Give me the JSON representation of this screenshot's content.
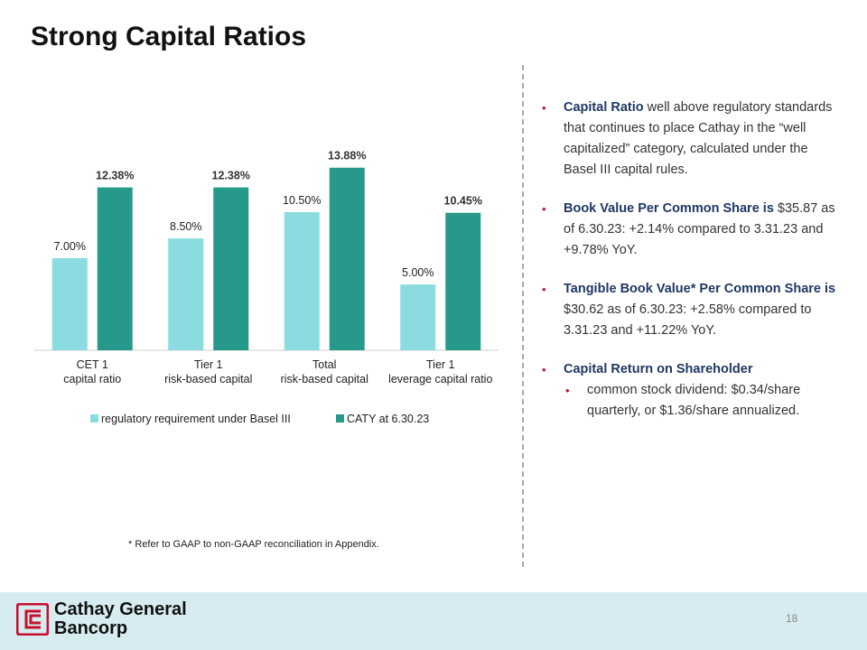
{
  "title": "Strong Capital Ratios",
  "chart_data": {
    "type": "bar",
    "categories": [
      {
        "line1": "CET 1",
        "line2": "capital ratio"
      },
      {
        "line1": "Tier 1",
        "line2": "risk-based capital"
      },
      {
        "line1": "Total",
        "line2": "risk-based capital"
      },
      {
        "line1": "Tier 1",
        "line2": "leverage capital ratio"
      }
    ],
    "series": [
      {
        "name": "regulatory requirement under Basel III",
        "values": [
          7.0,
          8.5,
          10.5,
          5.0
        ],
        "labels": [
          "7.00%",
          "8.50%",
          "10.50%",
          "5.00%"
        ],
        "color": "#8adce0",
        "bold_labels": false
      },
      {
        "name": "CATY at 6.30.23",
        "values": [
          12.38,
          12.38,
          13.88,
          10.45
        ],
        "labels": [
          "12.38%",
          "12.38%",
          "13.88%",
          "10.45%"
        ],
        "color": "#26998a",
        "bold_labels": true
      }
    ],
    "ylim": [
      0,
      14
    ],
    "legend": "bottom",
    "grid": false
  },
  "bullets": [
    {
      "strong": "Capital Ratio",
      "text": " well above regulatory standards that continues to place Cathay in the “well capitalized” category, calculated under the Basel III capital rules."
    },
    {
      "strong": "Book Value Per Common Share is",
      "text": " $35.87 as of 6.30.23: +2.14% compared to 3.31.23 and +9.78% YoY."
    },
    {
      "strong": "Tangible Book Value* Per Common Share is",
      "text": " $30.62 as of 6.30.23: +2.58% compared to 3.31.23 and +11.22% YoY."
    },
    {
      "strong": "Capital Return on Shareholder",
      "text": "",
      "sub": "common stock dividend: $0.34/share quarterly, or $1.36/share annualized."
    }
  ],
  "bullet_glyph": "•",
  "footnote": "* Refer to GAAP to non-GAAP reconciliation in Appendix.",
  "footer": {
    "logo_line1": "Cathay General",
    "logo_line2": "Bancorp",
    "page_number": "18",
    "logo_color": "#c8102e"
  }
}
